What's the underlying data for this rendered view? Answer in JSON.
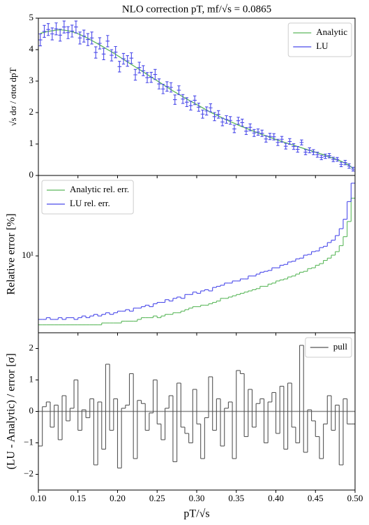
{
  "chart_data": [
    {
      "type": "line",
      "title": "NLO correction pT, mf/√s = 0.0865",
      "ylabel": "√s dσ / σtot dpT",
      "xlim": [
        0.1,
        0.5
      ],
      "ylim": [
        0,
        5
      ],
      "yticks": [
        0,
        1,
        2,
        3,
        4,
        5
      ],
      "legend": "upper right",
      "x": [
        0.1025,
        0.1075,
        0.1125,
        0.1175,
        0.1225,
        0.1275,
        0.1325,
        0.1375,
        0.1425,
        0.1475,
        0.1525,
        0.1575,
        0.1625,
        0.1675,
        0.1725,
        0.1775,
        0.1825,
        0.1875,
        0.1925,
        0.1975,
        0.2025,
        0.2075,
        0.2125,
        0.2175,
        0.2225,
        0.2275,
        0.2325,
        0.2375,
        0.2425,
        0.2475,
        0.2525,
        0.2575,
        0.2625,
        0.2675,
        0.2725,
        0.2775,
        0.2825,
        0.2875,
        0.2925,
        0.2975,
        0.3025,
        0.3075,
        0.3125,
        0.3175,
        0.3225,
        0.3275,
        0.3325,
        0.3375,
        0.3425,
        0.3475,
        0.3525,
        0.3575,
        0.3625,
        0.3675,
        0.3725,
        0.3775,
        0.3825,
        0.3875,
        0.3925,
        0.3975,
        0.4025,
        0.4075,
        0.4125,
        0.4175,
        0.4225,
        0.4275,
        0.4325,
        0.4375,
        0.4425,
        0.4475,
        0.4525,
        0.4575,
        0.4625,
        0.4675,
        0.4725,
        0.4775,
        0.4825,
        0.4875,
        0.4925,
        0.4975
      ],
      "series": [
        {
          "name": "Analytic",
          "color": "#5cb85c",
          "values": [
            4.52,
            4.55,
            4.58,
            4.6,
            4.62,
            4.63,
            4.62,
            4.6,
            4.57,
            4.53,
            4.48,
            4.42,
            4.36,
            4.29,
            4.22,
            4.15,
            4.08,
            4.0,
            3.93,
            3.85,
            3.77,
            3.69,
            3.61,
            3.53,
            3.45,
            3.37,
            3.29,
            3.21,
            3.13,
            3.05,
            2.97,
            2.89,
            2.81,
            2.73,
            2.65,
            2.58,
            2.5,
            2.43,
            2.36,
            2.29,
            2.22,
            2.15,
            2.08,
            2.01,
            1.95,
            1.89,
            1.83,
            1.77,
            1.71,
            1.66,
            1.6,
            1.55,
            1.5,
            1.45,
            1.4,
            1.35,
            1.3,
            1.26,
            1.21,
            1.17,
            1.12,
            1.08,
            1.04,
            1.0,
            0.96,
            0.92,
            0.88,
            0.84,
            0.8,
            0.76,
            0.72,
            0.68,
            0.64,
            0.59,
            0.55,
            0.5,
            0.45,
            0.39,
            0.32,
            0.22
          ]
        },
        {
          "name": "LU",
          "color": "#4b4bea",
          "values": [
            4.31,
            4.58,
            4.64,
            4.5,
            4.66,
            4.46,
            4.72,
            4.54,
            4.59,
            4.72,
            4.37,
            4.43,
            4.32,
            4.37,
            3.91,
            4.2,
            3.86,
            4.27,
            3.82,
            3.92,
            3.46,
            3.71,
            3.64,
            3.73,
            3.2,
            3.43,
            3.33,
            3.11,
            3.12,
            3.21,
            2.91,
            2.75,
            2.83,
            2.8,
            2.41,
            2.71,
            2.43,
            2.33,
            2.22,
            2.39,
            2.17,
            1.95,
            2.05,
            2.15,
            1.87,
            1.94,
            1.7,
            1.78,
            1.75,
            1.48,
            1.74,
            1.68,
            1.41,
            1.53,
            1.35,
            1.38,
            1.34,
            1.16,
            1.24,
            1.23,
            1.05,
            1.15,
            0.93,
            1.08,
            0.92,
            0.83,
            1.05,
            0.74,
            0.8,
            0.74,
            0.66,
            0.57,
            0.61,
            0.63,
            0.51,
            0.51,
            0.35,
            0.41,
            0.3,
            0.2
          ],
          "errors": [
            0.19,
            0.19,
            0.19,
            0.19,
            0.19,
            0.19,
            0.19,
            0.19,
            0.19,
            0.19,
            0.19,
            0.19,
            0.19,
            0.19,
            0.18,
            0.18,
            0.18,
            0.18,
            0.18,
            0.18,
            0.17,
            0.17,
            0.17,
            0.17,
            0.17,
            0.17,
            0.16,
            0.16,
            0.16,
            0.16,
            0.16,
            0.15,
            0.15,
            0.15,
            0.15,
            0.14,
            0.14,
            0.14,
            0.14,
            0.14,
            0.13,
            0.13,
            0.13,
            0.13,
            0.13,
            0.12,
            0.12,
            0.12,
            0.12,
            0.12,
            0.11,
            0.11,
            0.11,
            0.11,
            0.11,
            0.1,
            0.1,
            0.1,
            0.1,
            0.1,
            0.1,
            0.09,
            0.09,
            0.09,
            0.09,
            0.09,
            0.08,
            0.08,
            0.08,
            0.08,
            0.08,
            0.07,
            0.07,
            0.07,
            0.07,
            0.06,
            0.07,
            0.07,
            0.07,
            0.06
          ]
        }
      ]
    },
    {
      "type": "histogram",
      "ylabel": "Relative error [%]",
      "log_y": true,
      "xlim": [
        0.1,
        0.5
      ],
      "ylim": [
        3.5,
        30
      ],
      "yticks": [
        {
          "value": 10,
          "label": "10¹"
        }
      ],
      "legend": "upper left",
      "bins": [
        0.1,
        0.105,
        0.11,
        0.115,
        0.12,
        0.125,
        0.13,
        0.135,
        0.14,
        0.145,
        0.15,
        0.155,
        0.16,
        0.165,
        0.17,
        0.175,
        0.18,
        0.185,
        0.19,
        0.195,
        0.2,
        0.205,
        0.21,
        0.215,
        0.22,
        0.225,
        0.23,
        0.235,
        0.24,
        0.245,
        0.25,
        0.255,
        0.26,
        0.265,
        0.27,
        0.275,
        0.28,
        0.285,
        0.29,
        0.295,
        0.3,
        0.305,
        0.31,
        0.315,
        0.32,
        0.325,
        0.33,
        0.335,
        0.34,
        0.345,
        0.35,
        0.355,
        0.36,
        0.365,
        0.37,
        0.375,
        0.38,
        0.385,
        0.39,
        0.395,
        0.4,
        0.405,
        0.41,
        0.415,
        0.42,
        0.425,
        0.43,
        0.435,
        0.44,
        0.445,
        0.45,
        0.455,
        0.46,
        0.465,
        0.47,
        0.475,
        0.48,
        0.485,
        0.49,
        0.495,
        0.5
      ],
      "series": [
        {
          "name": "Analytic rel. err.",
          "color": "#5cb85c",
          "values": [
            3.9,
            3.9,
            3.9,
            3.9,
            3.9,
            3.9,
            3.9,
            3.9,
            3.9,
            3.9,
            3.9,
            3.9,
            3.9,
            3.9,
            3.9,
            3.9,
            4.0,
            4.0,
            4.0,
            4.0,
            4.0,
            4.1,
            4.1,
            4.1,
            4.1,
            4.2,
            4.3,
            4.3,
            4.3,
            4.4,
            4.3,
            4.4,
            4.5,
            4.5,
            4.6,
            4.6,
            4.7,
            4.8,
            4.9,
            5.0,
            5.0,
            5.1,
            5.1,
            5.2,
            5.3,
            5.4,
            5.6,
            5.6,
            5.7,
            5.8,
            5.9,
            6.0,
            6.1,
            6.2,
            6.3,
            6.4,
            6.6,
            6.6,
            6.8,
            6.9,
            7.1,
            7.2,
            7.3,
            7.5,
            7.6,
            7.8,
            8.0,
            8.1,
            8.4,
            8.5,
            8.8,
            9.0,
            9.4,
            9.7,
            10.1,
            10.6,
            11.5,
            13.0,
            16.0,
            22.0
          ]
        },
        {
          "name": "LU rel. err.",
          "color": "#4b4bea",
          "values": [
            4.2,
            4.2,
            4.3,
            4.2,
            4.2,
            4.3,
            4.2,
            4.3,
            4.3,
            4.2,
            4.3,
            4.4,
            4.3,
            4.4,
            4.5,
            4.4,
            4.5,
            4.6,
            4.5,
            4.6,
            4.7,
            4.7,
            4.8,
            4.7,
            4.9,
            4.9,
            5.0,
            5.1,
            5.0,
            5.2,
            5.3,
            5.3,
            5.5,
            5.4,
            5.6,
            5.7,
            5.6,
            5.9,
            5.9,
            6.1,
            6.0,
            6.2,
            6.3,
            6.2,
            6.5,
            6.6,
            6.7,
            6.9,
            6.9,
            7.1,
            7.1,
            7.3,
            7.3,
            7.6,
            7.6,
            7.8,
            8.0,
            8.1,
            8.2,
            8.5,
            8.5,
            8.8,
            8.9,
            9.2,
            9.3,
            9.6,
            9.7,
            10.1,
            10.2,
            10.6,
            10.7,
            11.2,
            11.4,
            12.0,
            12.4,
            13.2,
            14.5,
            16.5,
            21.0,
            27.0
          ]
        }
      ]
    },
    {
      "type": "histogram",
      "ylabel": "(LU - Analytic) / error [σ]",
      "xlabel": "pT/√s",
      "xlim": [
        0.1,
        0.5
      ],
      "ylim": [
        -2.5,
        2.5
      ],
      "legend": "upper right",
      "reference_line": 0,
      "xticks": [
        {
          "value": 0.1,
          "label": "0.10"
        },
        0.15,
        {
          "value": 0.2,
          "label": "0.20"
        },
        0.25,
        {
          "value": 0.3,
          "label": "0.30"
        },
        0.35,
        {
          "value": 0.4,
          "label": "0.40"
        },
        0.45,
        {
          "value": 0.5,
          "label": "0.50"
        }
      ],
      "yticks": [
        {
          "value": -2,
          "label": "−2"
        },
        {
          "value": -1,
          "label": "−1"
        },
        0,
        1,
        2
      ],
      "bins": [
        0.1,
        0.105,
        0.11,
        0.115,
        0.12,
        0.125,
        0.13,
        0.135,
        0.14,
        0.145,
        0.15,
        0.155,
        0.16,
        0.165,
        0.17,
        0.175,
        0.18,
        0.185,
        0.19,
        0.195,
        0.2,
        0.205,
        0.21,
        0.215,
        0.22,
        0.225,
        0.23,
        0.235,
        0.24,
        0.245,
        0.25,
        0.255,
        0.26,
        0.265,
        0.27,
        0.275,
        0.28,
        0.285,
        0.29,
        0.295,
        0.3,
        0.305,
        0.31,
        0.315,
        0.32,
        0.325,
        0.33,
        0.335,
        0.34,
        0.345,
        0.35,
        0.355,
        0.36,
        0.365,
        0.37,
        0.375,
        0.38,
        0.385,
        0.39,
        0.395,
        0.4,
        0.405,
        0.41,
        0.415,
        0.42,
        0.425,
        0.43,
        0.435,
        0.44,
        0.445,
        0.45,
        0.455,
        0.46,
        0.465,
        0.47,
        0.475,
        0.48,
        0.485,
        0.49,
        0.495,
        0.5
      ],
      "series": [
        {
          "name": "pull",
          "color": "#555555",
          "values": [
            -1.1,
            0.15,
            0.3,
            -0.5,
            0.2,
            -0.9,
            0.5,
            -0.3,
            0.1,
            1.0,
            -0.6,
            0.05,
            -0.2,
            0.4,
            -1.7,
            0.3,
            -1.2,
            1.5,
            -0.6,
            0.4,
            -1.8,
            0.1,
            0.2,
            1.2,
            -1.5,
            0.35,
            0.25,
            -0.6,
            -0.05,
            1.0,
            -0.4,
            -0.9,
            0.1,
            0.5,
            -1.6,
            0.9,
            -0.5,
            -0.7,
            -1.0,
            0.7,
            -0.4,
            -1.5,
            -0.2,
            1.1,
            -0.6,
            0.4,
            -1.1,
            0.1,
            0.3,
            -1.5,
            1.3,
            1.2,
            -0.8,
            0.7,
            -0.5,
            0.25,
            0.4,
            -1.0,
            0.3,
            0.6,
            -0.7,
            0.8,
            -1.2,
            0.9,
            -0.5,
            -1.0,
            2.1,
            -1.3,
            0.05,
            -0.3,
            -0.8,
            -1.5,
            -0.4,
            0.5,
            -0.6,
            0.2,
            -1.7,
            0.4,
            -0.4,
            -0.4
          ]
        }
      ]
    }
  ]
}
